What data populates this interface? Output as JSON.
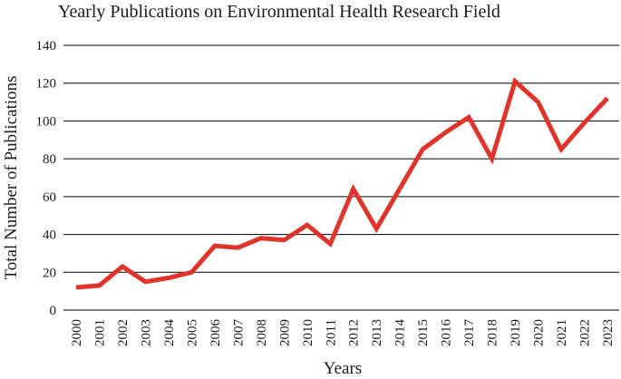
{
  "chart_data": {
    "type": "line",
    "title": "Yearly Publications on Environmental Health Research Field",
    "xlabel": "Years",
    "ylabel": "Total Number of Publications",
    "ylim": [
      0,
      140
    ],
    "yticks": [
      "0",
      "20",
      "40",
      "60",
      "80",
      "100",
      "120",
      "140"
    ],
    "grid": true,
    "legend": "none",
    "categories": [
      "2000",
      "2001",
      "2002",
      "2003",
      "2004",
      "2005",
      "2006",
      "2007",
      "2008",
      "2009",
      "2010",
      "2011",
      "2012",
      "2013",
      "2014",
      "2015",
      "2016",
      "2017",
      "2018",
      "2019",
      "2020",
      "2021",
      "2022",
      "2023"
    ],
    "series": [
      {
        "color": "#e03329",
        "values": [
          12,
          13,
          23,
          15,
          17,
          20,
          34,
          33,
          38,
          37,
          45,
          35,
          64,
          43,
          64,
          85,
          94,
          102,
          80,
          121,
          110,
          85,
          99,
          112
        ]
      }
    ]
  }
}
